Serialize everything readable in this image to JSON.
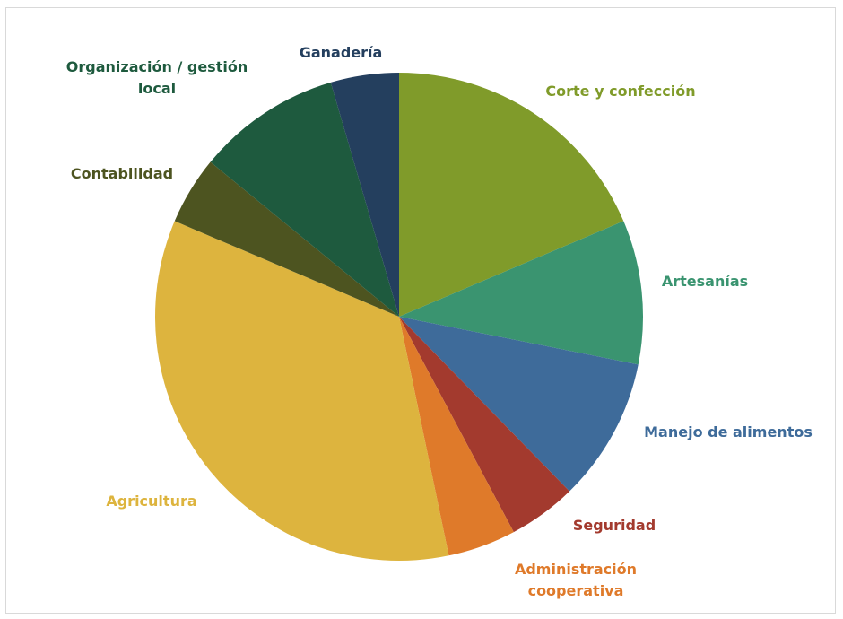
{
  "chart_data": {
    "type": "pie",
    "start_angle_deg": 0,
    "direction": "clockwise",
    "slices": [
      {
        "label": "Corte y confección",
        "value": 18.5,
        "color": "#809b2a",
        "label_color": "#809b2a"
      },
      {
        "label": "Artesanías",
        "value": 9.5,
        "color": "#3a9470",
        "label_color": "#3a9470"
      },
      {
        "label": "Manejo de alimentos",
        "value": 9.5,
        "color": "#3e6b9a",
        "label_color": "#3e6b9a"
      },
      {
        "label": "Seguridad",
        "value": 4.5,
        "color": "#a33a2e",
        "label_color": "#a33a2e"
      },
      {
        "label": "Administración cooperativa",
        "value": 4.5,
        "color": "#df7a2a",
        "label_color": "#df7a2a"
      },
      {
        "label": "Agricultura",
        "value": 34.5,
        "color": "#ddb43e",
        "label_color": "#ddb43e"
      },
      {
        "label": "Contabilidad",
        "value": 4.5,
        "color": "#4d5420",
        "label_color": "#4d5420"
      },
      {
        "label": "Organización / gestión local",
        "value": 9.5,
        "color": "#1e5a3e",
        "label_color": "#1e5a3e"
      },
      {
        "label": "Ganadería",
        "value": 4.5,
        "color": "#243f5e",
        "label_color": "#243f5e"
      }
    ]
  }
}
